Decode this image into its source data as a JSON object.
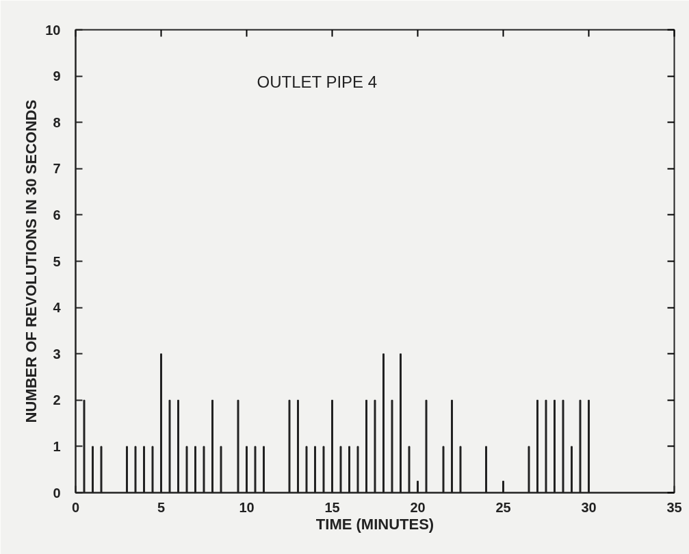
{
  "chart_data": {
    "type": "bar",
    "title": "OUTLET PIPE 4",
    "xlabel": "TIME (MINUTES)",
    "ylabel": "NUMBER OF REVOLUTIONS IN 30 SECONDS",
    "x": [
      0.5,
      1.0,
      1.5,
      3.0,
      3.5,
      4.0,
      4.5,
      5.0,
      5.5,
      6.0,
      6.5,
      7.0,
      7.5,
      8.0,
      8.5,
      9.5,
      10.0,
      10.5,
      11.0,
      12.5,
      13.0,
      13.5,
      14.0,
      14.5,
      15.0,
      15.5,
      16.0,
      16.5,
      17.0,
      17.5,
      18.0,
      18.5,
      19.0,
      19.5,
      20.0,
      20.5,
      21.5,
      22.0,
      22.5,
      24.0,
      25.0,
      26.5,
      27.0,
      27.5,
      28.0,
      28.5,
      29.0,
      29.5,
      30.0
    ],
    "values": [
      2,
      1,
      1,
      1,
      1,
      1,
      1,
      3,
      2,
      2,
      1,
      1,
      1,
      2,
      1,
      2,
      1,
      1,
      1,
      2,
      2,
      1,
      1,
      1,
      2,
      1,
      1,
      1,
      2,
      2,
      3,
      2,
      3,
      1,
      0.25,
      2,
      1,
      2,
      1,
      1,
      0.25,
      1,
      2,
      2,
      2,
      2,
      1,
      2,
      2
    ],
    "color": "#222222",
    "xlim": [
      0,
      35
    ],
    "xticks": [
      0,
      5,
      10,
      15,
      20,
      25,
      30,
      35
    ],
    "ylim": [
      0,
      10
    ],
    "yticks": [
      0,
      1,
      2,
      3,
      4,
      5,
      6,
      7,
      8,
      9,
      10
    ],
    "grid": false
  }
}
